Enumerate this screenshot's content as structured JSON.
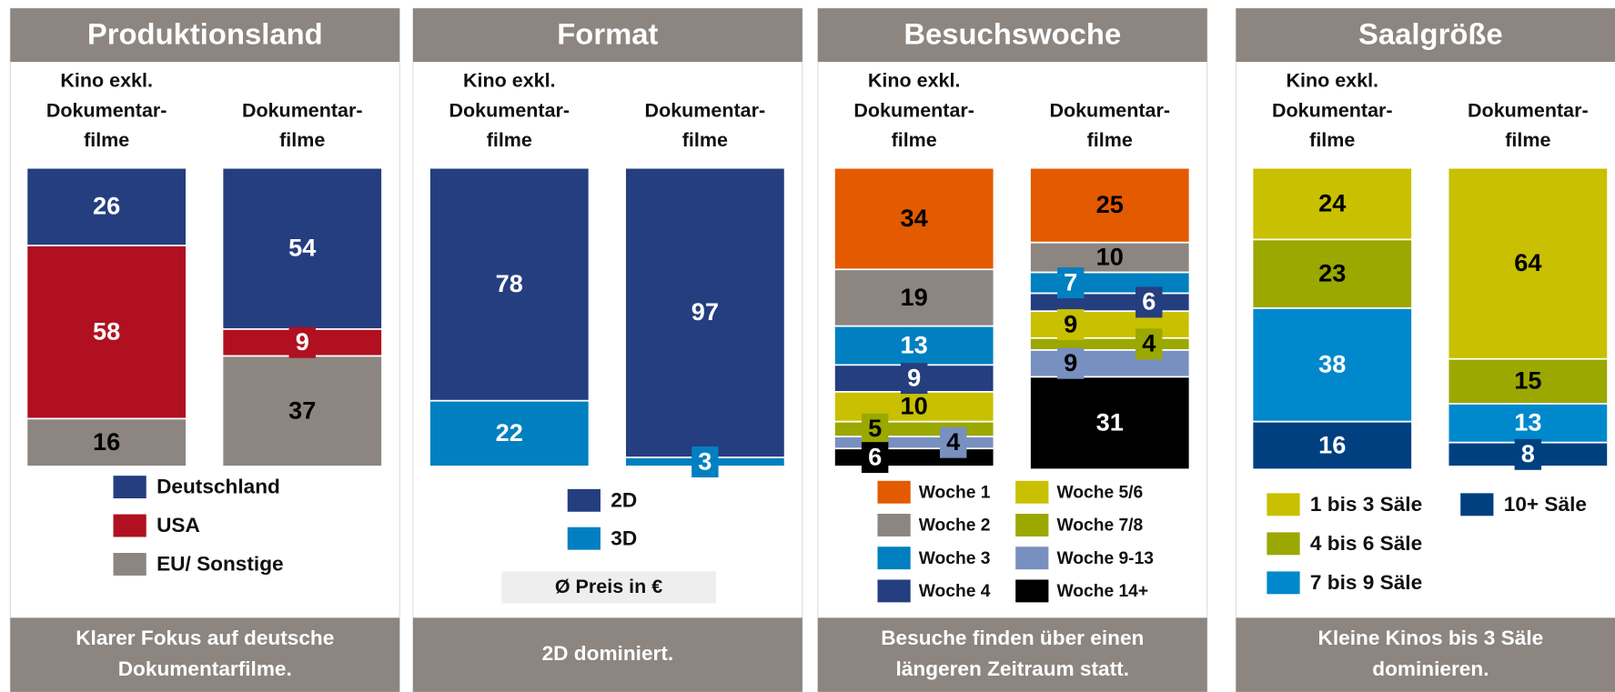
{
  "chart_data": [
    {
      "type": "bar",
      "stacked": true,
      "title": "Produktionsland",
      "categories": [
        "Kino exkl.\nDokumentar-\nfilme",
        "Dokumentar-\nfilme"
      ],
      "ylim": [
        0,
        100
      ],
      "series": [
        {
          "name": "Deutschland",
          "color": "#253e80",
          "values": [
            26,
            54
          ]
        },
        {
          "name": "USA",
          "color": "#b01020",
          "values": [
            58,
            9
          ]
        },
        {
          "name": "EU/ Sonstige",
          "color": "#8c8580",
          "values": [
            16,
            37
          ]
        }
      ],
      "caption": [
        "Klarer Fokus auf deutsche",
        "Dokumentarfilme."
      ]
    },
    {
      "type": "bar",
      "stacked": true,
      "title": "Format",
      "categories": [
        "Kino exkl.\nDokumentar-\nfilme",
        "Dokumentar-\nfilme"
      ],
      "ylim": [
        0,
        100
      ],
      "series": [
        {
          "name": "2D",
          "color": "#253e80",
          "values": [
            78,
            97
          ]
        },
        {
          "name": "3D",
          "color": "#0080c0",
          "values": [
            22,
            3
          ]
        }
      ],
      "note": "Ø Preis in €",
      "caption": [
        "2D dominiert."
      ]
    },
    {
      "type": "bar",
      "stacked": true,
      "title": "Besuchswoche",
      "categories": [
        "Kino exkl.\nDokumentar-\nfilme",
        "Dokumentar-\nfilme"
      ],
      "ylim": [
        0,
        100
      ],
      "series": [
        {
          "name": "Woche 1",
          "color": "#e35a00",
          "values": [
            34,
            25
          ]
        },
        {
          "name": "Woche 2",
          "color": "#8c8580",
          "values": [
            19,
            10
          ]
        },
        {
          "name": "Woche 3",
          "color": "#0080c0",
          "values": [
            13,
            7
          ]
        },
        {
          "name": "Woche 4",
          "color": "#253e80",
          "values": [
            9,
            6
          ]
        },
        {
          "name": "Woche 5/6",
          "color": "#c8c000",
          "values": [
            10,
            9
          ]
        },
        {
          "name": "Woche 7/8",
          "color": "#9aa800",
          "values": [
            5,
            4
          ]
        },
        {
          "name": "Woche 9-13",
          "color": "#7890c0",
          "values": [
            4,
            9
          ]
        },
        {
          "name": "Woche 14+",
          "color": "#000000",
          "values": [
            6,
            31
          ]
        }
      ],
      "caption": [
        "Besuche finden über einen",
        "längeren Zeitraum statt."
      ]
    },
    {
      "type": "bar",
      "stacked": true,
      "title": "Saalgröße",
      "categories": [
        "Kino exkl.\nDokumentar-\nfilme",
        "Dokumentar-\nfilme"
      ],
      "ylim": [
        0,
        100
      ],
      "series": [
        {
          "name": "1 bis 3 Säle",
          "color": "#c8c000",
          "values": [
            24,
            64
          ]
        },
        {
          "name": "4 bis 6 Säle",
          "color": "#9aa800",
          "values": [
            23,
            15
          ]
        },
        {
          "name": "7 bis 9 Säle",
          "color": "#0088cc",
          "values": [
            38,
            13
          ]
        },
        {
          "name": "10+ Säle",
          "color": "#004080",
          "values": [
            16,
            8
          ]
        }
      ],
      "caption": [
        "Kleine Kinos bis 3 Säle",
        "dominieren."
      ]
    }
  ]
}
